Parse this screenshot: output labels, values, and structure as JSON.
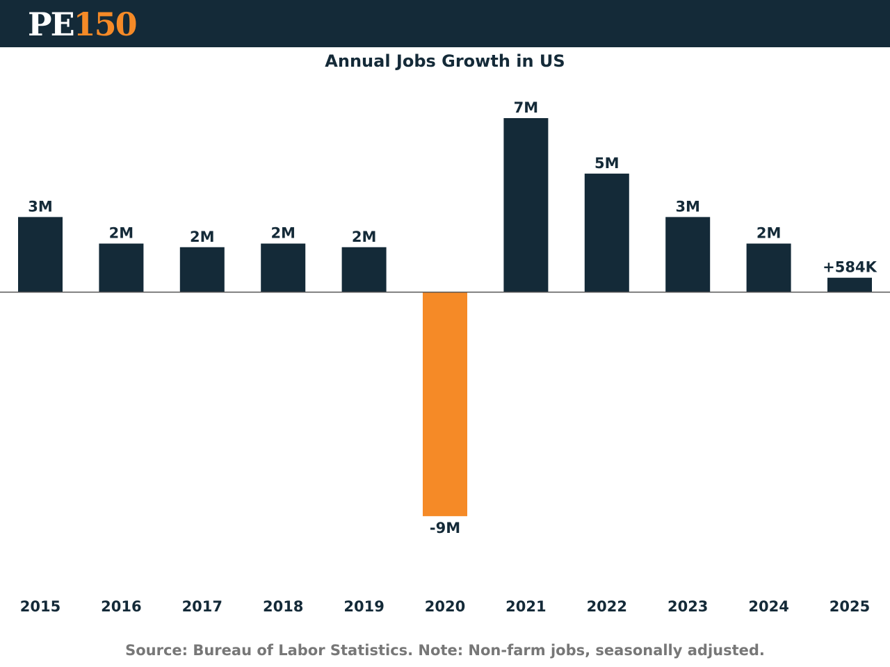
{
  "header": {
    "logo_part1": "PE",
    "logo_part2": "150",
    "background_color": "#142a38",
    "accent_color": "#f58a27"
  },
  "footer": {
    "source": "Source: Bureau of Labor Statistics. Note: Non-farm jobs, seasonally adjusted."
  },
  "chart_data": {
    "type": "bar",
    "title": "Annual Jobs Growth in US",
    "xlabel": "",
    "ylabel": "",
    "categories": [
      "2015",
      "2016",
      "2017",
      "2018",
      "2019",
      "2020",
      "2021",
      "2022",
      "2023",
      "2024",
      "2025"
    ],
    "values": [
      3.1,
      2.0,
      1.85,
      2.0,
      1.85,
      -9.3,
      7.2,
      4.9,
      3.1,
      2.0,
      0.584
    ],
    "value_units": "millions of jobs",
    "data_labels": [
      "3M",
      "2M",
      "2M",
      "2M",
      "2M",
      "-9M",
      "7M",
      "5M",
      "3M",
      "2M",
      "+584K"
    ],
    "ylim": [
      -9.3,
      7.2
    ],
    "grid": false,
    "legend": "none",
    "colors": {
      "positive": "#142a38",
      "negative": "#f58a27",
      "baseline": "#555555"
    }
  }
}
